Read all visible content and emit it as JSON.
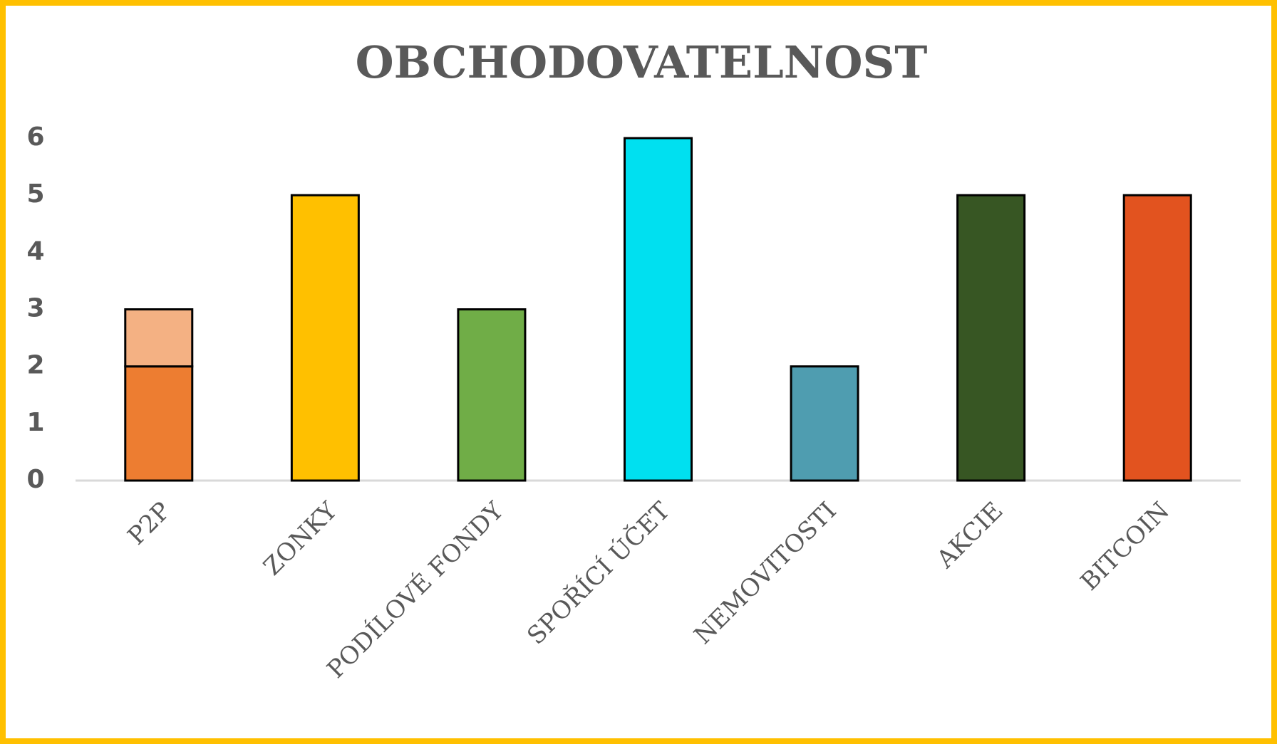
{
  "chart_data": {
    "type": "stacked_bar",
    "title": "OBCHODOVATELNOST",
    "categories": [
      "P2P",
      "ZONKY",
      "PODÍLOVÉ FONDY",
      "SPOŘÍCÍ ÚČET",
      "NEMOVITOSTI",
      "AKCIE",
      "BITCOIN"
    ],
    "series": [
      {
        "colors": [
          "#ed7d31",
          "#ffc000",
          "#70ad47",
          "#00e0f0",
          "#4f9db0",
          "#375623",
          "#e2531f"
        ],
        "values": [
          2,
          5,
          3,
          6,
          2,
          5,
          5
        ]
      },
      {
        "colors": [
          "#f4b183",
          null,
          null,
          null,
          null,
          null,
          null
        ],
        "values": [
          1,
          null,
          null,
          null,
          null,
          null,
          null
        ]
      }
    ],
    "ylim": [
      0,
      6
    ],
    "yticks": [
      0,
      1,
      2,
      3,
      4,
      5,
      6
    ],
    "grid": false
  }
}
